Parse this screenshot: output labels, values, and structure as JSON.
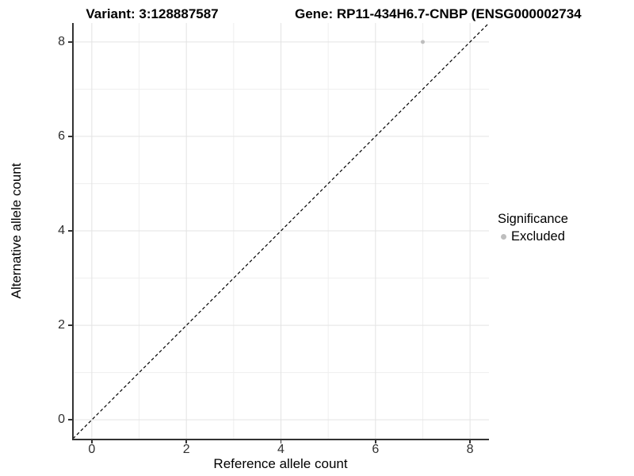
{
  "header": {
    "variant_title": "Variant: 3:128887587",
    "gene_title": "Gene: RP11-434H6.7-CNBP (ENSG000002734"
  },
  "axes": {
    "x": {
      "label": "Reference allele count"
    },
    "y": {
      "label": "Alternative allele count"
    }
  },
  "legend": {
    "title": "Significance",
    "items": [
      {
        "label": "Excluded",
        "color": "#bebebe"
      }
    ]
  },
  "chart_data": {
    "type": "scatter",
    "title": "Variant: 3:128887587   Gene: RP11-434H6.7-CNBP (ENSG000002734",
    "xlabel": "Reference allele count",
    "ylabel": "Alternative allele count",
    "xlim": [
      -0.4,
      8.4
    ],
    "ylim": [
      -0.4,
      8.4
    ],
    "x_ticks": [
      0,
      2,
      4,
      6,
      8
    ],
    "y_ticks": [
      0,
      2,
      4,
      6,
      8
    ],
    "x_minor": [
      1,
      3,
      5,
      7
    ],
    "y_minor": [
      1,
      3,
      5,
      7
    ],
    "grid": true,
    "legend_position": "right",
    "series": [
      {
        "name": "Excluded",
        "color": "#bebebe",
        "points": [
          [
            7,
            8
          ]
        ]
      }
    ],
    "reference_line": {
      "equation": "y = x",
      "style": "dashed",
      "color": "#000000"
    },
    "colors": {
      "point": "#bebebe",
      "grid_major": "#e3e3e3",
      "grid_minor": "#efefef",
      "axis": "#333333",
      "background": "#ffffff"
    }
  }
}
